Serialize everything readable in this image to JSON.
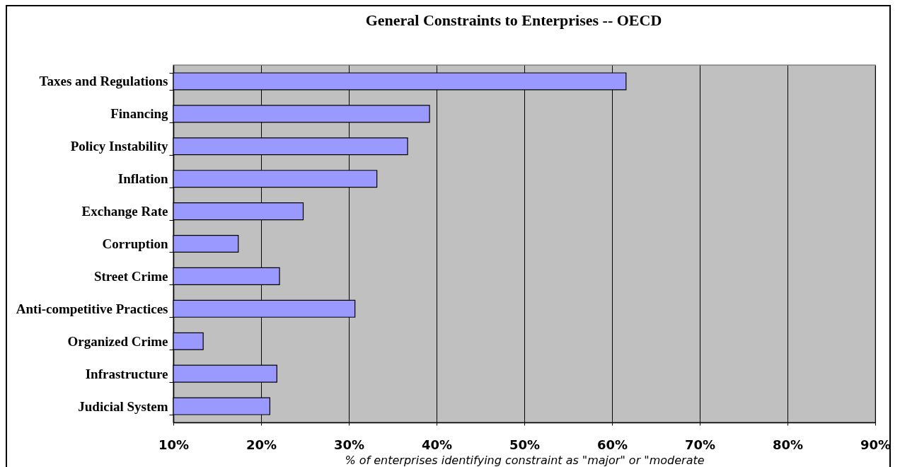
{
  "chart_data": {
    "type": "bar",
    "orientation": "horizontal",
    "title": "General Constraints to Enterprises -- OECD",
    "xlabel": "% of enterprises identifying constraint as \"major\" or \"moderate",
    "categories": [
      "Taxes and Regulations",
      "Financing",
      "Policy Instability",
      "Inflation",
      "Exchange Rate",
      "Corruption",
      "Street Crime",
      "Anti-competitive Practices",
      "Organized Crime",
      "Infrastructure",
      "Judicial System"
    ],
    "values": [
      61.6,
      39.2,
      36.7,
      33.2,
      24.8,
      17.4,
      22.1,
      30.7,
      13.4,
      21.8,
      21.0
    ],
    "color": "#9999ff",
    "xlim": [
      10,
      90
    ],
    "xticks": [
      {
        "value": 10,
        "label": "10%"
      },
      {
        "value": 20,
        "label": "20%"
      },
      {
        "value": 30,
        "label": "30%"
      },
      {
        "value": 40,
        "label": "40%"
      },
      {
        "value": 50,
        "label": "50%"
      },
      {
        "value": 60,
        "label": "60%"
      },
      {
        "value": 70,
        "label": "70%"
      },
      {
        "value": 80,
        "label": "80%"
      },
      {
        "value": 90,
        "label": "90%"
      }
    ],
    "grid": "x"
  }
}
